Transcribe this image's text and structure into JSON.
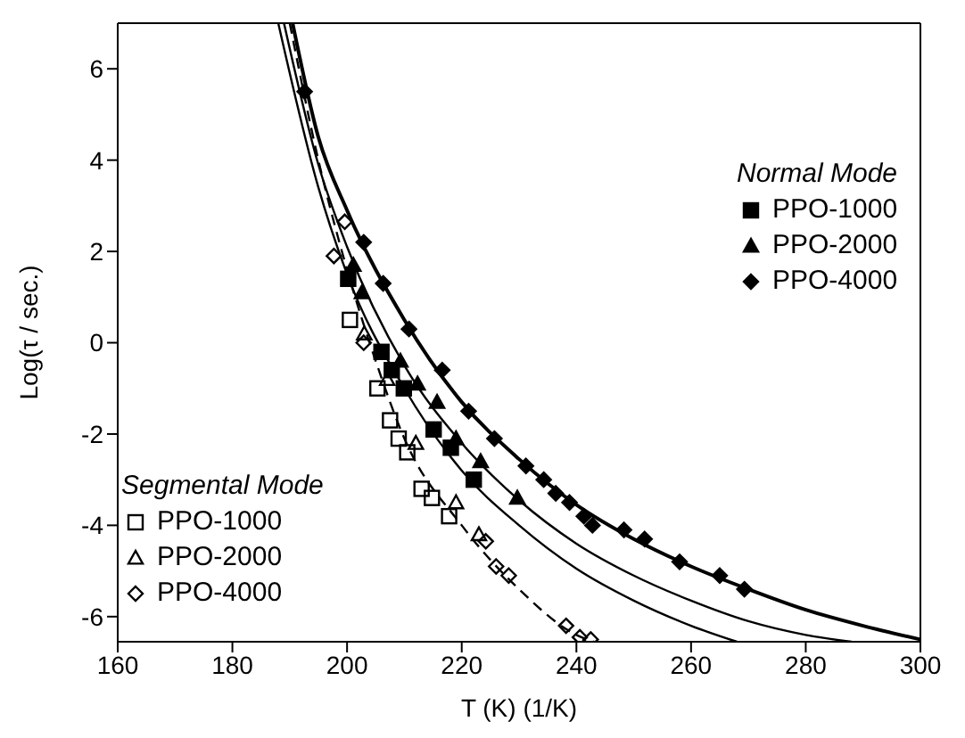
{
  "chart_data": {
    "type": "scatter",
    "xlabel": "T (K) (1/K)",
    "ylabel": "Log(τ / sec.)",
    "xlim": [
      160,
      300
    ],
    "xticks": [
      160,
      180,
      200,
      220,
      240,
      260,
      280,
      300
    ],
    "ylim": [
      -6.55,
      7
    ],
    "yticks": [
      -6,
      -4,
      -2,
      0,
      2,
      4,
      6
    ],
    "legend": "bottom left",
    "annotations": [
      "Normal Mode",
      "Segmental Mode"
    ],
    "series": [
      {
        "name": "PPO-1000",
        "color": "#000000",
        "marker": "square",
        "x": [
          200.2,
          206,
          207.8,
          209.9,
          215.1,
          218.1,
          222.1
        ],
        "values": [
          1.4,
          -0.2,
          -0.6,
          -1,
          -1.9,
          -2.3,
          -3
        ]
      },
      {
        "name": "PPO-2000",
        "color": "#000000",
        "marker": "triangle",
        "x": [
          201.1,
          202.6,
          209.3,
          212.3,
          215.7,
          219,
          223.3,
          229.7
        ],
        "values": [
          1.7,
          1.1,
          -0.4,
          -0.9,
          -1.3,
          -2.1,
          -2.6,
          -3.4
        ]
      },
      {
        "name": "PPO-4000",
        "color": "#000000",
        "marker": "diamond",
        "x": [
          192.6,
          202.9,
          206.3,
          210.8,
          216.6,
          221.2,
          225.7,
          231.2,
          234.3,
          236.4,
          238.8,
          241.3,
          242.8,
          248.3,
          251.9,
          258,
          265,
          269.3
        ],
        "values": [
          5.5,
          2.2,
          1.3,
          0.3,
          -0.6,
          -1.5,
          -2.1,
          -2.7,
          -3,
          -3.3,
          -3.5,
          -3.8,
          -4,
          -4.1,
          -4.3,
          -4.8,
          -5.1,
          -5.4
        ]
      },
      {
        "name": "PPO-1000",
        "color": "#000000",
        "marker": "square",
        "x": [
          200.5,
          205.3,
          207.5,
          209,
          210.5,
          213,
          214.8,
          217.8
        ],
        "values": [
          0.5,
          -1,
          -1.7,
          -2.1,
          -2.4,
          -3.2,
          -3.4,
          -3.8
        ]
      },
      {
        "name": "PPO-2000",
        "color": "#000000",
        "marker": "triangle",
        "x": [
          203,
          207,
          212,
          219,
          223
        ],
        "values": [
          0.2,
          -0.8,
          -2.2,
          -3.5,
          -4.2
        ]
      },
      {
        "name": "PPO-4000",
        "color": "#000000",
        "marker": "diamond",
        "x": [
          197.7,
          199.6,
          202.9,
          224.2,
          226,
          228.2,
          238.2,
          240.6,
          242.5
        ],
        "values": [
          1.9,
          2.65,
          0,
          -4.35,
          -4.9,
          -5.1,
          -6.2,
          -6.45,
          -6.5
        ]
      },
      {
        "type": "line",
        "color": "#000000",
        "line_style": "solid",
        "x": [
          188,
          195,
          200,
          210,
          220,
          230,
          240,
          250,
          260,
          268
        ],
        "values": [
          7,
          3.4,
          1.5,
          -1,
          -2.8,
          -4,
          -4.95,
          -5.65,
          -6.2,
          -6.55
        ]
      },
      {
        "type": "line",
        "color": "#000000",
        "line_style": "solid",
        "x": [
          189,
          195,
          200,
          210,
          220,
          230,
          240,
          250,
          260,
          270,
          280,
          288
        ],
        "values": [
          7,
          3.9,
          2.1,
          -0.5,
          -2.2,
          -3.45,
          -4.4,
          -5.1,
          -5.65,
          -6.1,
          -6.4,
          -6.55
        ]
      },
      {
        "type": "line",
        "color": "#000000",
        "line_style": "solid",
        "x": [
          190.5,
          195,
          200,
          210,
          220,
          230,
          240,
          250,
          260,
          270,
          280,
          290,
          300
        ],
        "values": [
          7,
          4.5,
          2.9,
          0.5,
          -1.3,
          -2.55,
          -3.55,
          -4.3,
          -4.9,
          -5.4,
          -5.85,
          -6.2,
          -6.5
        ]
      },
      {
        "type": "line",
        "color": "#000000",
        "line_style": "dashed",
        "x": [
          190,
          195,
          200,
          205,
          210,
          220,
          230,
          240,
          243
        ],
        "values": [
          7,
          4,
          1.6,
          -0.4,
          -2.1,
          -4,
          -5.4,
          -6.4,
          -6.55
        ]
      }
    ]
  }
}
